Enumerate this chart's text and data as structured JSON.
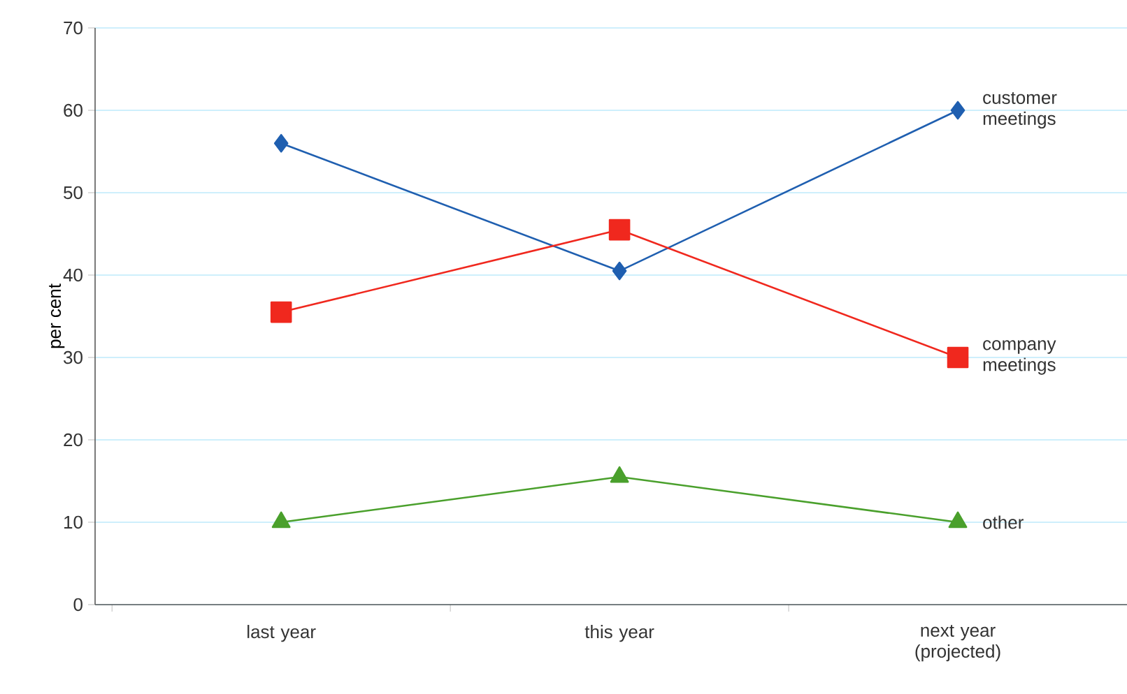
{
  "chart_data": {
    "type": "line",
    "ylabel": "per cent",
    "categories": [
      "last year",
      "this year",
      "next year (projected)"
    ],
    "series": [
      {
        "name": "customer meetings",
        "color": "#1f5fb0",
        "marker": "diamond",
        "values": [
          56,
          40.5,
          60
        ]
      },
      {
        "name": "company meetings",
        "color": "#f0281e",
        "marker": "square",
        "values": [
          35.5,
          45.5,
          30
        ]
      },
      {
        "name": "other",
        "color": "#4aa02c",
        "marker": "triangle",
        "values": [
          10,
          15.5,
          10
        ]
      }
    ],
    "ylim": [
      0,
      70
    ],
    "yticks": [
      0,
      10,
      20,
      30,
      40,
      50,
      60,
      70
    ],
    "grid": "y",
    "legend": false
  }
}
